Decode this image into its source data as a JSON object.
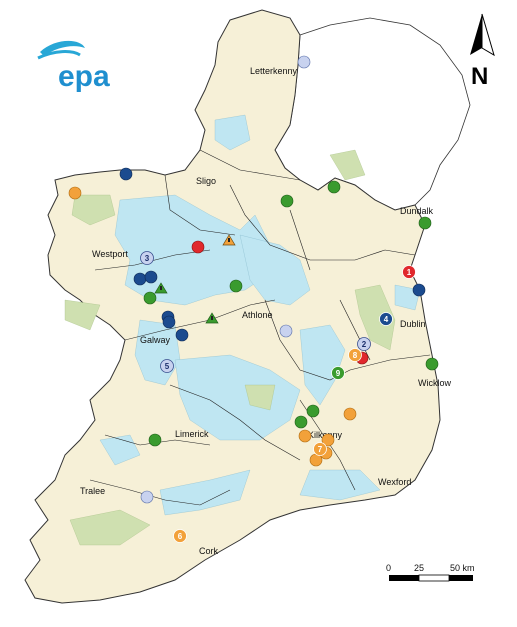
{
  "logo": {
    "text": "epa",
    "color": "#1f8fcf"
  },
  "north_arrow": {
    "label": "N"
  },
  "places": {
    "letterkenny": "Letterkenny",
    "sligo": "Sligo",
    "dundalk": "Dundalk",
    "westport": "Westport",
    "athlone": "Athlone",
    "dublin": "Dublin",
    "galway": "Galway",
    "wicklow": "Wicklow",
    "limerick": "Limerick",
    "kilkenny": "Kilkenny",
    "tralee": "Tralee",
    "wexford": "Wexford",
    "cork": "Cork"
  },
  "scale_bar": {
    "t0": "0",
    "t1": "25",
    "t2": "50 km"
  },
  "colors": {
    "land": "#f6f0d7",
    "karst": "#bfe6f2",
    "upland": "#cfe0b0",
    "sea": "#ffffff",
    "marker_darkblue": "#1b4b8f",
    "marker_green": "#3a9b2e",
    "marker_orange": "#f2a13a",
    "marker_red": "#e0282c",
    "marker_lightblue": "#c8d2ef"
  },
  "markers": {
    "n1": "1",
    "n2": "2",
    "n3": "3",
    "n4": "4",
    "n5": "5",
    "n6": "6",
    "n7": "7",
    "n8": "8",
    "n9": "9"
  }
}
